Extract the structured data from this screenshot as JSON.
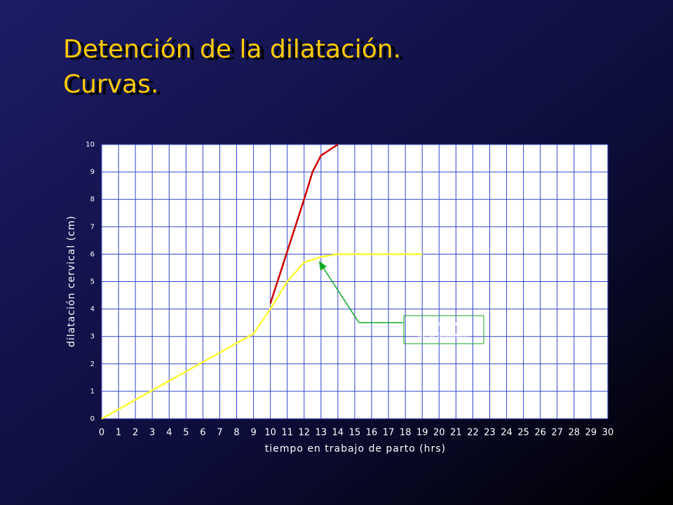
{
  "chart_data": {
    "type": "line",
    "title": [
      "Detención de la dilatación.",
      "Curvas."
    ],
    "xlabel": "tiempo en trabajo de parto (hrs)",
    "ylabel": "dilatación cervical (cm)",
    "xlim": [
      0,
      30
    ],
    "xticks": [
      0,
      1,
      2,
      3,
      4,
      5,
      6,
      7,
      8,
      9,
      10,
      11,
      12,
      13,
      14,
      15,
      16,
      17,
      18,
      19,
      20,
      21,
      22,
      23,
      24,
      25,
      26,
      27,
      28,
      29,
      30
    ],
    "ylim": [
      0,
      10
    ],
    "yticks": [
      0,
      1,
      2,
      3,
      4,
      5,
      6,
      7,
      8,
      9,
      10
    ],
    "grid": true,
    "series": [
      {
        "color": "#ffff33",
        "x": [
          0,
          9,
          10,
          11,
          12,
          13,
          14,
          19
        ],
        "values": [
          0,
          3.1,
          4,
          5,
          5.7,
          5.9,
          6,
          6
        ]
      },
      {
        "color": "#cc0000",
        "x": [
          10,
          11,
          12,
          12.5,
          13,
          14
        ],
        "values": [
          4.2,
          6.1,
          8,
          9,
          9.6,
          10
        ]
      }
    ],
    "annotation": [
      "interrupción",
      "de la dilatación"
    ]
  }
}
